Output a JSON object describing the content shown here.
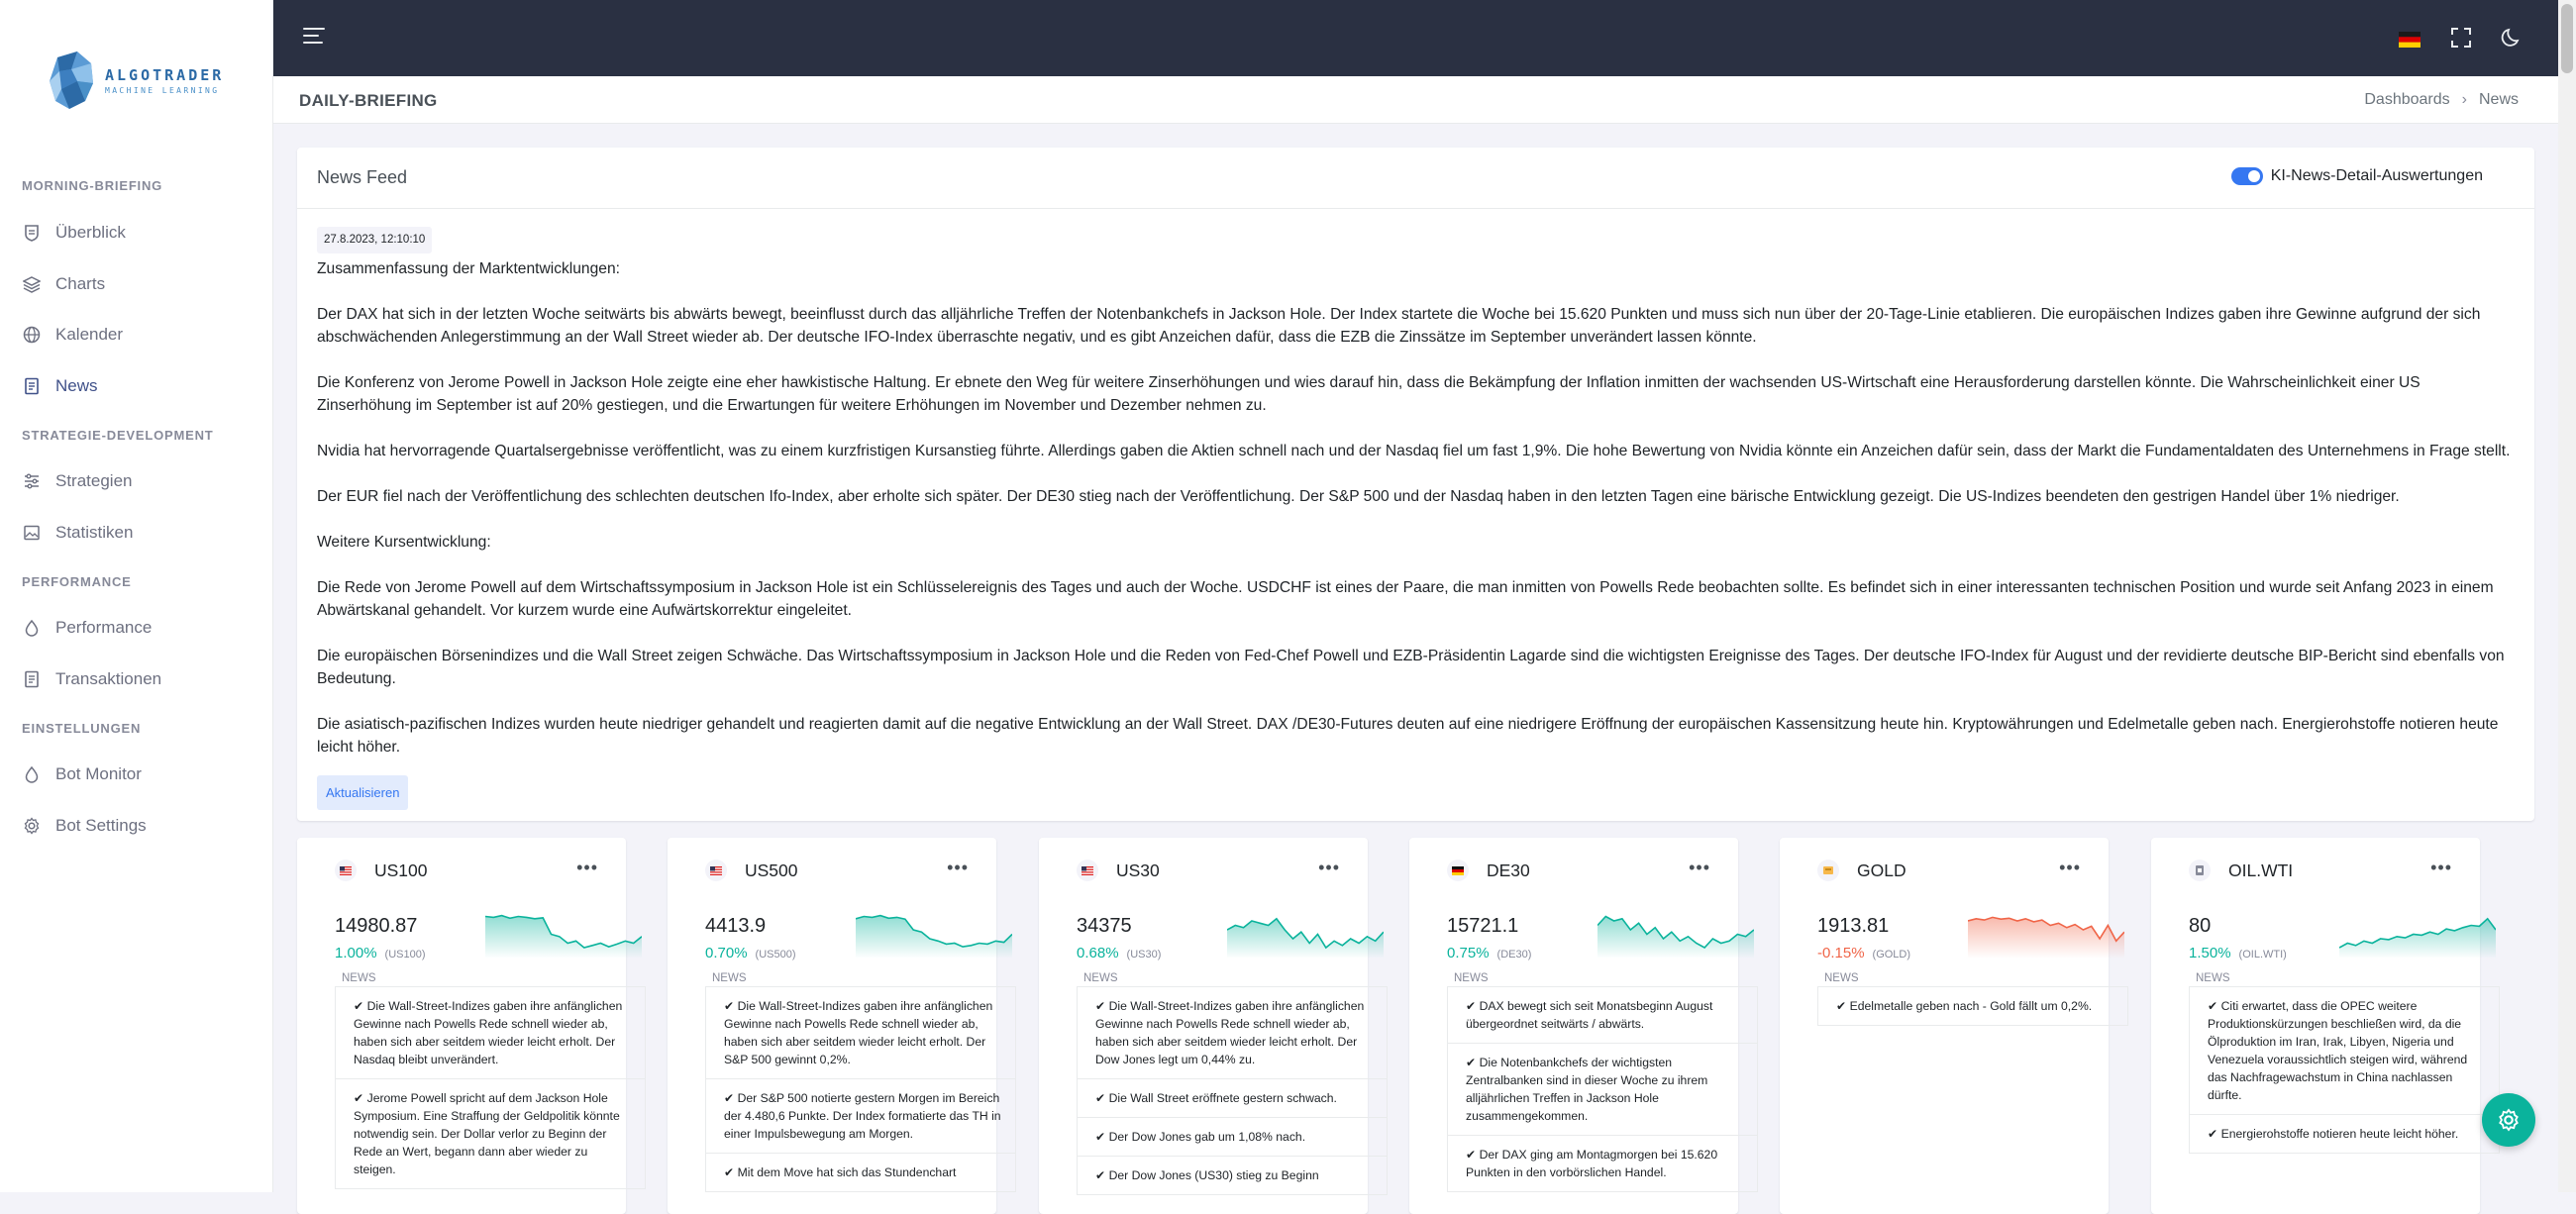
{
  "sidebar": {
    "logo": {
      "line1": "ALGOTRADER",
      "line2": "MACHINE LEARNING"
    },
    "sections": [
      {
        "title": "MORNING-BRIEFING",
        "items": [
          {
            "label": "Überblick",
            "icon": "shield-icon"
          },
          {
            "label": "Charts",
            "icon": "layers-icon"
          },
          {
            "label": "Kalender",
            "icon": "globe-icon"
          },
          {
            "label": "News",
            "icon": "document-icon",
            "active": true
          }
        ]
      },
      {
        "title": "STRATEGIE-DEVELOPMENT",
        "items": [
          {
            "label": "Strategien",
            "icon": "sliders-icon"
          },
          {
            "label": "Statistiken",
            "icon": "image-icon"
          }
        ]
      },
      {
        "title": "PERFORMANCE",
        "items": [
          {
            "label": "Performance",
            "icon": "drop-icon"
          },
          {
            "label": "Transaktionen",
            "icon": "document-icon"
          }
        ]
      },
      {
        "title": "EINSTELLUNGEN",
        "items": [
          {
            "label": "Bot Monitor",
            "icon": "drop-icon"
          },
          {
            "label": "Bot Settings",
            "icon": "gear-icon"
          }
        ]
      }
    ]
  },
  "topbar": {
    "icons": [
      "menu-icon",
      "german-flag-icon",
      "fullscreen-icon",
      "moon-icon"
    ]
  },
  "page": {
    "title": "DAILY-BRIEFING",
    "breadcrumb": [
      "Dashboards",
      "News"
    ]
  },
  "news_feed": {
    "title": "News Feed",
    "toggle_label": "KI-News-Detail-Auswertungen",
    "timestamp": "27.8.2023, 12:10:10",
    "summary_heading": "Zusammenfassung der Marktentwicklungen:",
    "paragraphs": [
      "Der DAX hat sich in der letzten Woche seitwärts bis abwärts bewegt, beeinflusst durch das alljährliche Treffen der Notenbankchefs in Jackson Hole. Der Index startete die Woche bei 15.620 Punkten und muss sich nun über der 20-Tage-Linie etablieren. Die europäischen Indizes gaben ihre Gewinne aufgrund der sich abschwächenden Anlegerstimmung an der Wall Street wieder ab. Der deutsche IFO-Index überraschte negativ, und es gibt Anzeichen dafür, dass die EZB die Zinssätze im September unverändert lassen könnte.",
      "Die Konferenz von Jerome Powell in Jackson Hole zeigte eine eher hawkistische Haltung. Er ebnete den Weg für weitere Zinserhöhungen und wies darauf hin, dass die Bekämpfung der Inflation inmitten der wachsenden US-Wirtschaft eine Herausforderung darstellen könnte. Die Wahrscheinlichkeit einer US Zinserhöhung im September ist auf 20% gestiegen, und die Erwartungen für weitere Erhöhungen im November und Dezember nehmen zu.",
      "Nvidia hat hervorragende Quartalsergebnisse veröffentlicht, was zu einem kurzfristigen Kursanstieg führte. Allerdings gaben die Aktien schnell nach und der Nasdaq fiel um fast 1,9%. Die hohe Bewertung von Nvidia könnte ein Anzeichen dafür sein, dass der Markt die Fundamentaldaten des Unternehmens in Frage stellt.",
      "Der EUR fiel nach der Veröffentlichung des schlechten deutschen Ifo-Index, aber erholte sich später. Der DE30 stieg nach der Veröffentlichung. Der S&P 500 und der Nasdaq haben in den letzten Tagen eine bärische Entwicklung gezeigt. Die US-Indizes beendeten den gestrigen Handel über 1% niedriger."
    ],
    "further_heading": "Weitere Kursentwicklung:",
    "further_paragraphs": [
      "Die Rede von Jerome Powell auf dem Wirtschaftssymposium in Jackson Hole ist ein Schlüsselereignis des Tages und auch der Woche. USDCHF ist eines der Paare, die man inmitten von Powells Rede beobachten sollte. Es befindet sich in einer interessanten technischen Position und wurde seit Anfang 2023 in einem Abwärtskanal gehandelt. Vor kurzem wurde eine Aufwärtskorrektur eingeleitet.",
      "Die europäischen Börsenindizes und die Wall Street zeigen Schwäche. Das Wirtschaftssymposium in Jackson Hole und die Reden von Fed-Chef Powell und EZB-Präsidentin Lagarde sind die wichtigsten Ereignisse des Tages. Der deutsche IFO-Index für August und der revidierte deutsche BIP-Bericht sind ebenfalls von Bedeutung.",
      "Die asiatisch-pazifischen Indizes wurden heute niedriger gehandelt und reagierten damit auf die negative Entwicklung an der Wall Street. DAX /DE30-Futures deuten auf eine niedrigere Eröffnung der europäischen Kassensitzung heute hin. Kryptowährungen und Edelmetalle geben nach. Energierohstoffe notieren heute leicht höher."
    ],
    "refresh_label": "Aktualisieren"
  },
  "instruments": [
    {
      "name": "US100",
      "flag": "us-flag-icon",
      "price": "14980.87",
      "change": "1.00%",
      "symbol": "(US100)",
      "trend": "up",
      "color": "#0ab39c",
      "spark": [
        0.9,
        0.88,
        0.92,
        0.86,
        0.9,
        0.88,
        0.85,
        0.87,
        0.5,
        0.45,
        0.3,
        0.35,
        0.2,
        0.25,
        0.3,
        0.22,
        0.28,
        0.35,
        0.3,
        0.45
      ],
      "news_label": "NEWS",
      "news": [
        "✔ Die Wall-Street-Indizes gaben ihre anfänglichen Gewinne nach Powells Rede schnell wieder ab, haben sich aber seitdem wieder leicht erholt. Der Nasdaq bleibt unverändert.",
        "✔ Jerome Powell spricht auf dem Jackson Hole Symposium. Eine Straffung der Geldpolitik könnte notwendig sein. Der Dollar verlor zu Beginn der Rede an Wert, begann dann aber wieder zu steigen."
      ]
    },
    {
      "name": "US500",
      "flag": "us-flag-icon",
      "price": "4413.9",
      "change": "0.70%",
      "symbol": "(US500)",
      "trend": "up",
      "color": "#0ab39c",
      "spark": [
        0.85,
        0.9,
        0.88,
        0.92,
        0.86,
        0.88,
        0.84,
        0.6,
        0.55,
        0.4,
        0.35,
        0.28,
        0.3,
        0.22,
        0.25,
        0.3,
        0.28,
        0.35,
        0.32,
        0.5
      ],
      "news_label": "NEWS",
      "news": [
        "✔ Die Wall-Street-Indizes gaben ihre anfänglichen Gewinne nach Powells Rede schnell wieder ab, haben sich aber seitdem wieder leicht erholt. Der S&P 500 gewinnt 0,2%.",
        "✔ Der S&P 500 notierte gestern Morgen im Bereich der 4.480,6 Punkte. Der Index formatierte das TH in einer Impulsbewegung am Morgen.",
        "✔ Mit dem Move hat sich das Stundenchart"
      ]
    },
    {
      "name": "US30",
      "flag": "us-flag-icon",
      "price": "34375",
      "change": "0.68%",
      "symbol": "(US30)",
      "trend": "up",
      "color": "#0ab39c",
      "spark": [
        0.6,
        0.7,
        0.65,
        0.8,
        0.75,
        0.7,
        0.85,
        0.6,
        0.4,
        0.55,
        0.3,
        0.5,
        0.2,
        0.35,
        0.25,
        0.4,
        0.3,
        0.45,
        0.35,
        0.55
      ],
      "news_label": "NEWS",
      "news": [
        "✔ Die Wall-Street-Indizes gaben ihre anfänglichen Gewinne nach Powells Rede schnell wieder ab, haben sich aber seitdem wieder leicht erholt. Der Dow Jones legt um 0,44% zu.",
        "✔ Die Wall Street eröffnete gestern schwach.",
        "✔ Der Dow Jones gab um 1,08% nach.",
        "✔ Der Dow Jones (US30) stieg zu Beginn"
      ]
    },
    {
      "name": "DE30",
      "flag": "de-flag-icon",
      "price": "15721.1",
      "change": "0.75%",
      "symbol": "(DE30)",
      "trend": "up",
      "color": "#0ab39c",
      "spark": [
        0.7,
        0.9,
        0.8,
        0.85,
        0.6,
        0.75,
        0.5,
        0.65,
        0.4,
        0.55,
        0.35,
        0.45,
        0.3,
        0.2,
        0.4,
        0.3,
        0.35,
        0.5,
        0.45,
        0.6
      ],
      "news_label": "NEWS",
      "news": [
        "✔ DAX bewegt sich seit Monatsbeginn August übergeordnet seitwärts / abwärts.",
        "✔ Die Notenbankchefs der wichtigsten Zentralbanken sind in dieser Woche zu ihrem alljährlichen Treffen in Jackson Hole zusammengekommen.",
        "✔ Der DAX ging am Montagmorgen bei 15.620 Punkten in den vorbörslichen Handel."
      ]
    },
    {
      "name": "GOLD",
      "flag": "gold-icon",
      "price": "1913.81",
      "change": "-0.15%",
      "symbol": "(GOLD)",
      "trend": "down",
      "color": "#f06548",
      "spark": [
        0.8,
        0.85,
        0.82,
        0.88,
        0.84,
        0.86,
        0.8,
        0.85,
        0.78,
        0.82,
        0.7,
        0.75,
        0.65,
        0.72,
        0.6,
        0.68,
        0.4,
        0.7,
        0.35,
        0.55
      ],
      "news_label": "NEWS",
      "news": [
        "✔ Edelmetalle geben nach - Gold fällt um 0,2%."
      ]
    },
    {
      "name": "OIL.WTI",
      "flag": "oil-icon",
      "price": "80",
      "change": "1.50%",
      "symbol": "(OIL.WTI)",
      "trend": "up",
      "color": "#0ab39c",
      "spark": [
        0.2,
        0.3,
        0.25,
        0.35,
        0.3,
        0.4,
        0.38,
        0.45,
        0.42,
        0.5,
        0.48,
        0.55,
        0.5,
        0.62,
        0.58,
        0.65,
        0.7,
        0.68,
        0.85,
        0.6
      ],
      "news_label": "NEWS",
      "news": [
        "✔ Citi erwartet, dass die OPEC weitere Produktionskürzungen beschließen wird, da die Ölproduktion im Iran, Irak, Libyen, Nigeria und Venezuela voraussichtlich steigen wird, während das Nachfragewachstum in China nachlassen dürfte.",
        "✔ Energierohstoffe notieren heute leicht höher."
      ]
    }
  ],
  "fab": {
    "icon": "gear-icon"
  }
}
